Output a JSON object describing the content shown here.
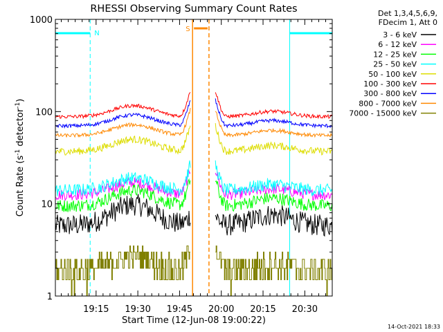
{
  "chart_data": {
    "type": "line",
    "title": "RHESSI Observing Summary Count Rates",
    "xlabel": "Start Time (12-Jun-08 19:00:22)",
    "ylabel": "Count Rate (s⁻¹ detector⁻¹)",
    "ylabel_base": "Count Rate (s",
    "ylabel_mid": " detector",
    "ylabel_end": ")",
    "ylabel_sup": "-1",
    "y_scale": "log",
    "ylim": [
      1,
      1000
    ],
    "xlim_minutes": [
      0,
      99.5
    ],
    "y_ticks": [
      1,
      10,
      100,
      1000
    ],
    "y_tick_labels": [
      "1",
      "10",
      "100",
      "1000"
    ],
    "x_ticks_minutes": [
      14.63,
      29.63,
      44.63,
      59.63,
      74.63,
      89.63
    ],
    "x_tick_labels": [
      "19:15",
      "19:30",
      "19:45",
      "20:00",
      "20:15",
      "20:30"
    ],
    "legend_placement": "outside-right",
    "legend_header": [
      "Det 1,3,4,5,6,9,",
      "FDecim 1, Att 0"
    ],
    "series": [
      {
        "name": "3 - 6 keV",
        "color": "#000000",
        "level": 5.8,
        "bump": 4.0,
        "noise": 0.12
      },
      {
        "name": "6 - 12 keV",
        "color": "#ff00ff",
        "level": 12.5,
        "bump": 4.5,
        "noise": 0.06
      },
      {
        "name": "12 - 25 keV",
        "color": "#00ff00",
        "level": 9.5,
        "bump": 4.5,
        "noise": 0.07
      },
      {
        "name": "25 - 50 keV",
        "color": "#00ffff",
        "level": 14.0,
        "bump": 5.0,
        "noise": 0.07
      },
      {
        "name": "50 - 100 keV",
        "color": "#dddd00",
        "level": 37.0,
        "bump": 13.0,
        "noise": 0.04
      },
      {
        "name": "100 - 300 keV",
        "color": "#ff0000",
        "level": 88.0,
        "bump": 28.0,
        "noise": 0.02
      },
      {
        "name": "300 - 800 keV",
        "color": "#0000ff",
        "level": 70.0,
        "bump": 22.0,
        "noise": 0.02
      },
      {
        "name": "800 - 7000 keV",
        "color": "#ff8800",
        "level": 55.0,
        "bump": 17.0,
        "noise": 0.02
      },
      {
        "name": "7000 - 15000 keV",
        "color": "#808000",
        "level": 1.9,
        "bump": 0.8,
        "noise": 0.0
      }
    ],
    "gaps_minutes": [
      [
        48.5,
        57.5
      ]
    ],
    "annotations": [
      {
        "label": "N",
        "color": "#00ffff",
        "intervals_minutes": [
          [
            0,
            12.5
          ],
          [
            84.2,
            99.5
          ]
        ]
      },
      {
        "label": "S",
        "color": "#ff8800",
        "intervals_minutes": [
          [
            49.3,
            55.2
          ]
        ]
      }
    ],
    "footer_date": "14-Oct-2021 18:33"
  }
}
